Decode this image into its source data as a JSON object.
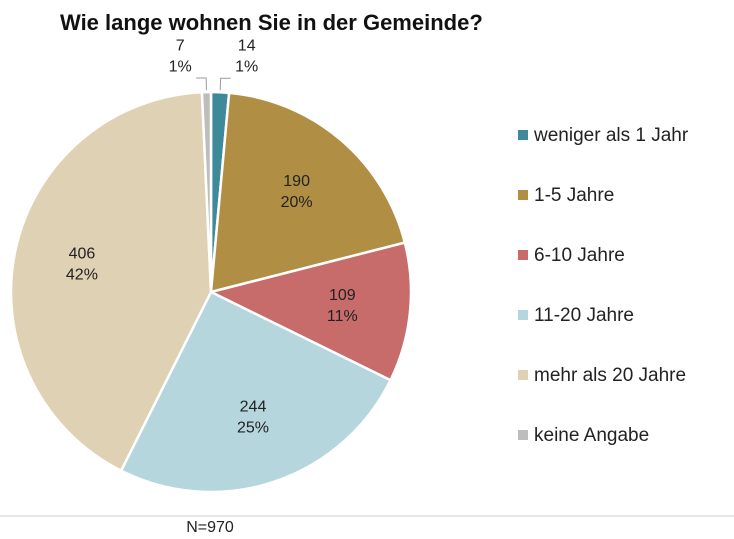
{
  "chart_data": {
    "type": "pie",
    "title": "Wie lange wohnen Sie in der Gemeinde?",
    "categories": [
      "weniger als 1 Jahr",
      "1-5 Jahre",
      "6-10 Jahre",
      "11-20 Jahre",
      "mehr als 20 Jahre",
      "keine Angabe"
    ],
    "values": [
      14,
      190,
      109,
      244,
      406,
      7
    ],
    "percent_labels": [
      "1%",
      "20%",
      "11%",
      "25%",
      "42%",
      "1%"
    ],
    "colors": [
      "#3e8a9a",
      "#b08f45",
      "#c86b6b",
      "#b6d6de",
      "#dfd1b4",
      "#bdbdbd"
    ],
    "note": "N=970"
  }
}
